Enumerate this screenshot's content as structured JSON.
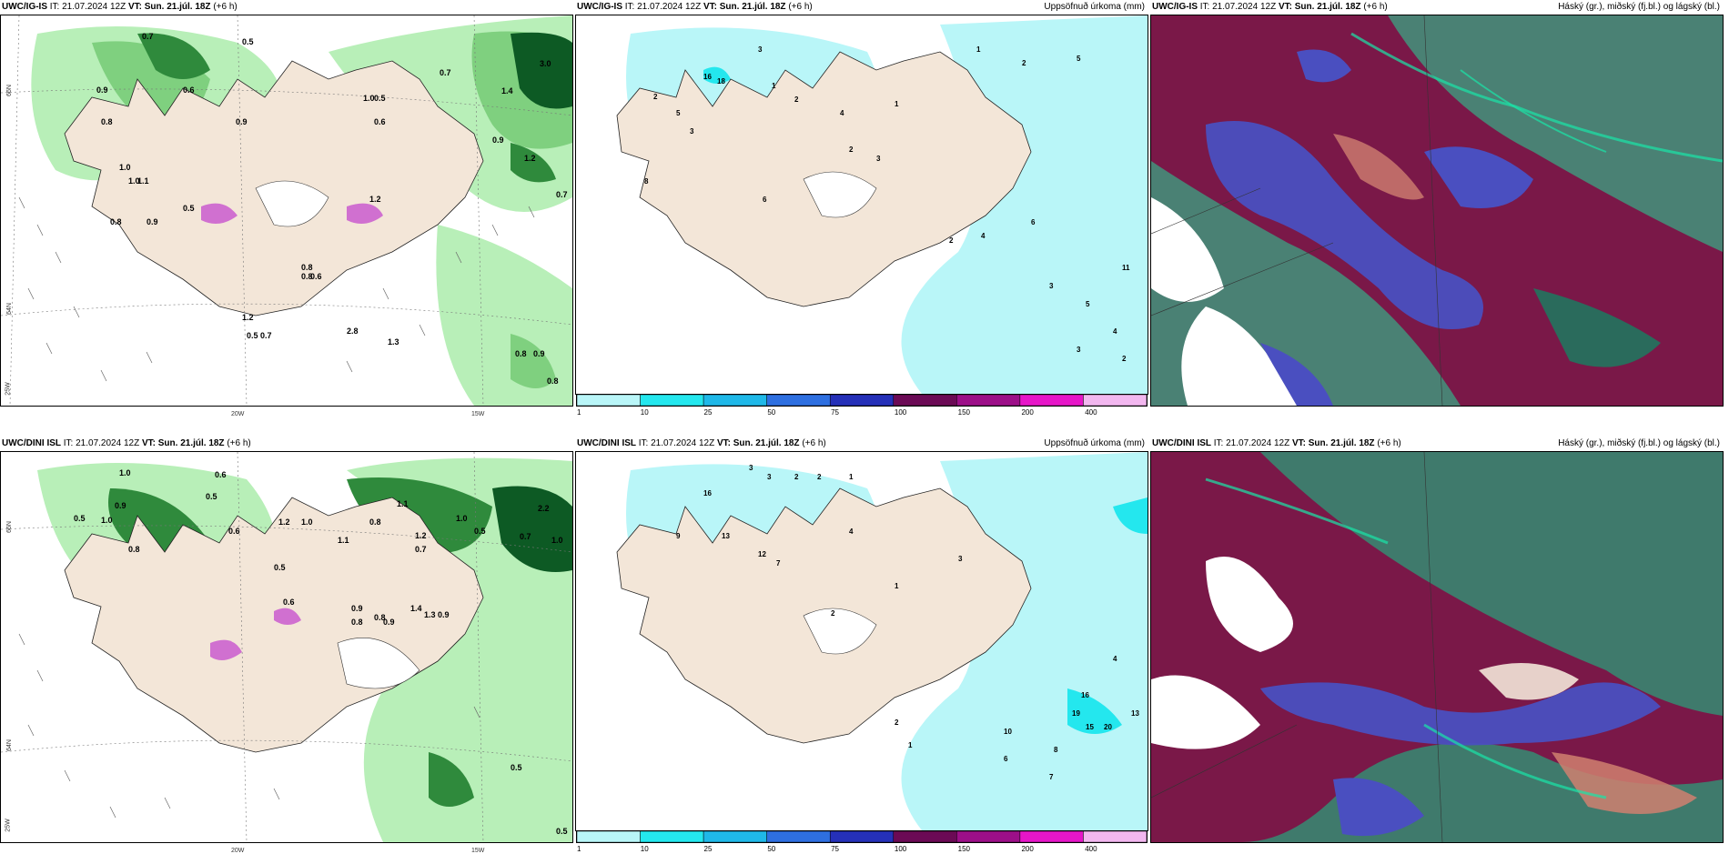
{
  "panels": [
    {
      "source": "UWC/IG-IS",
      "it": "IT: 21.07.2024 12Z",
      "vt": "VT: Sun. 21.júl. 18Z",
      "lead": "(+6 h)",
      "right_title": ""
    },
    {
      "source": "UWC/IG-IS",
      "it": "IT: 21.07.2024 12Z",
      "vt": "VT: Sun. 21.júl. 18Z",
      "lead": "(+6 h)",
      "right_title": "Uppsöfnuð úrkoma (mm)"
    },
    {
      "source": "UWC/IG-IS",
      "it": "IT: 21.07.2024 12Z",
      "vt": "VT: Sun. 21.júl. 18Z",
      "lead": "(+6 h)",
      "right_title": "Háský (gr.), miðský (fj.bl.) og lágský (bl.)"
    },
    {
      "source": "UWC/DINI ISL",
      "it": "IT: 21.07.2024 12Z",
      "vt": "VT: Sun. 21.júl. 18Z",
      "lead": "(+6 h)",
      "right_title": ""
    },
    {
      "source": "UWC/DINI ISL",
      "it": "IT: 21.07.2024 12Z",
      "vt": "VT: Sun. 21.júl. 18Z",
      "lead": "(+6 h)",
      "right_title": "Uppsöfnuð úrkoma (mm)"
    },
    {
      "source": "UWC/DINI ISL",
      "it": "IT: 21.07.2024 12Z",
      "vt": "VT: Sun. 21.júl. 18Z",
      "lead": "(+6 h)",
      "right_title": "Háský (gr.), miðský (fj.bl.) og lágský (bl.)"
    }
  ],
  "axis_labels": {
    "lat_66": "66N",
    "lat_64": "64N",
    "lon_25": "25W",
    "lon_20": "20W",
    "lon_15": "15W"
  },
  "colorbar": {
    "labels": [
      "1",
      "10",
      "25",
      "50",
      "75",
      "100",
      "150",
      "200",
      "400"
    ],
    "colors": [
      "#b9f6f8",
      "#24e7ee",
      "#1fb8e8",
      "#2e6fe0",
      "#2530b8",
      "#6b0a55",
      "#9c0f88",
      "#e616c8",
      "#f2b7ef"
    ]
  },
  "wind_panel_values": {
    "top": [
      "0.7",
      "0.5",
      "0.8",
      "0.9",
      "1.0",
      "0.6",
      "0.9",
      "1.0",
      "0.7",
      "0.5",
      "1.4",
      "3.0",
      "0.8",
      "1.0",
      "0.9",
      "1.1",
      "0.5",
      "0.8",
      "0.9",
      "1.2",
      "0.6",
      "1.2",
      "0.8",
      "0.6",
      "1.2",
      "0.5",
      "0.7",
      "2.8",
      "1.3",
      "0.9",
      "0.8",
      "0.8",
      "0.7"
    ],
    "bottom": [
      "1.0",
      "0.6",
      "0.5",
      "0.9",
      "1.0",
      "0.5",
      "0.8",
      "0.6",
      "1.2",
      "1.0",
      "0.7",
      "1.1",
      "0.5",
      "0.8",
      "1.0",
      "1.2",
      "0.9",
      "0.6",
      "0.5",
      "0.8",
      "1.1",
      "0.9",
      "0.7",
      "0.8",
      "1.4",
      "1.3",
      "0.9",
      "0.5",
      "2.2",
      "1.0",
      "0.5"
    ]
  },
  "precip_panel_values": {
    "top": [
      "3",
      "16",
      "18",
      "2",
      "5",
      "3",
      "1",
      "2",
      "8",
      "6",
      "4",
      "1",
      "2",
      "3",
      "1",
      "2",
      "5",
      "11",
      "4",
      "6",
      "2",
      "3",
      "5",
      "4",
      "3",
      "2"
    ],
    "bottom": [
      "3",
      "3",
      "2",
      "2",
      "1",
      "16",
      "13",
      "12",
      "9",
      "7",
      "4",
      "2",
      "1",
      "3",
      "16",
      "19",
      "15",
      "20",
      "13",
      "10",
      "8",
      "6",
      "4",
      "2",
      "1",
      "7"
    ]
  },
  "colors": {
    "land": "#f3e6d8",
    "sea": "#ffffff",
    "light_green": "#b8efb8",
    "mid_green": "#7fd07f",
    "dark_green": "#2f8a3c",
    "deep_green": "#0d5a24",
    "precip_cyan": "#b9f6f8",
    "cloud_teal": "#2a6b5c",
    "cloud_maroon": "#7a1848",
    "cloud_blue": "#4a4fc0"
  }
}
